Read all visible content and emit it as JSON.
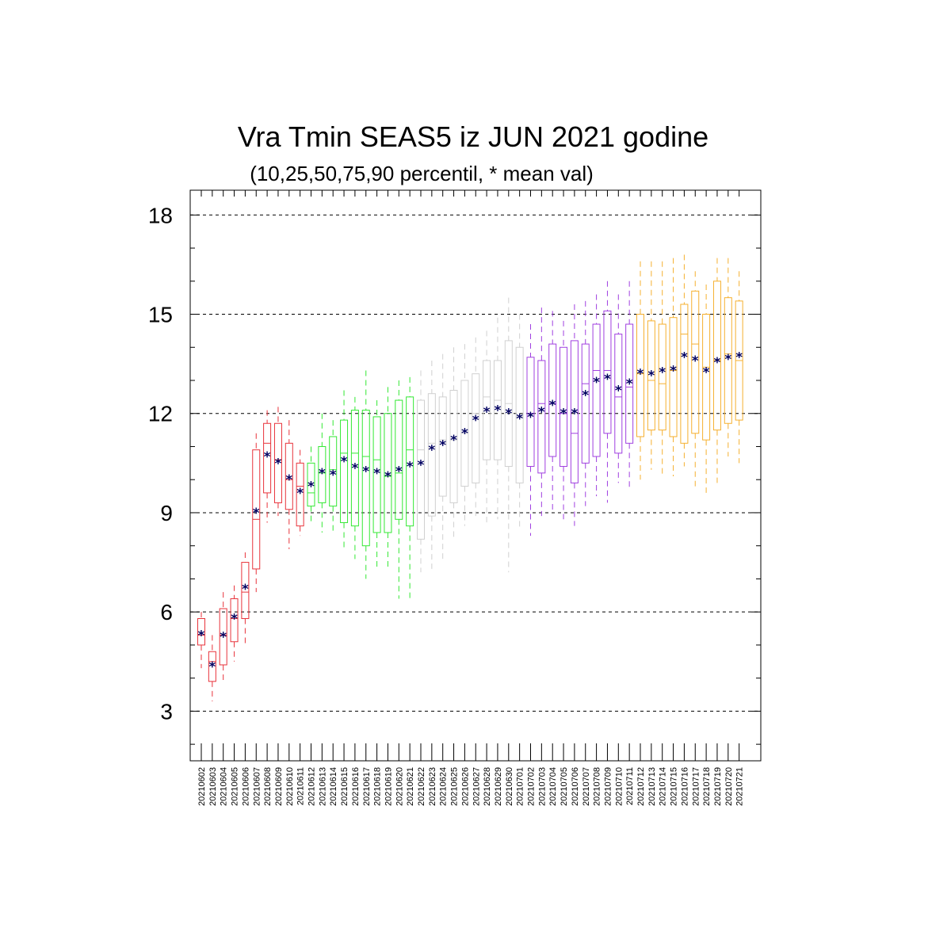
{
  "chart_data": {
    "type": "boxplot",
    "title": "Vra Tmin SEAS5 iz JUN 2021 godine",
    "subtitle": "(10,25,50,75,90 percentil, * mean val)",
    "ylim": [
      1.5,
      18.75
    ],
    "yticks": [
      "3",
      "6",
      "9",
      "12",
      "15",
      "18"
    ],
    "ytick_values": [
      3,
      6,
      9,
      12,
      15,
      18
    ],
    "grid": "horizontal dashed",
    "mean_marker": "*",
    "mean_color": "#000060",
    "colors": {
      "red": "#e8333b",
      "green": "#33e833",
      "gray": "#d0d0d0",
      "purple": "#a040e0",
      "orange": "#f5b030"
    },
    "categories": [
      "20210602",
      "20210603",
      "20210604",
      "20210605",
      "20210606",
      "20210607",
      "20210608",
      "20210609",
      "20210610",
      "20210611",
      "20210612",
      "20210613",
      "20210614",
      "20210615",
      "20210616",
      "20210617",
      "20210618",
      "20210619",
      "20210620",
      "20210621",
      "20210622",
      "20210623",
      "20210624",
      "20210625",
      "20210626",
      "20210627",
      "20210628",
      "20210629",
      "20210630",
      "20210701",
      "20210702",
      "20210703",
      "20210704",
      "20210705",
      "20210706",
      "20210707",
      "20210708",
      "20210709",
      "20210710",
      "20210711",
      "20210712",
      "20210713",
      "20210714",
      "20210715",
      "20210716",
      "20210717",
      "20210718",
      "20210719",
      "20210720",
      "20210721"
    ],
    "boxes": [
      {
        "p10": 4.3,
        "p25": 5.0,
        "p50": 5.3,
        "p75": 5.8,
        "p90": 6.0,
        "mean": 5.35,
        "color": "red"
      },
      {
        "p10": 3.3,
        "p25": 3.9,
        "p50": 4.5,
        "p75": 4.8,
        "p90": 5.3,
        "mean": 4.4,
        "color": "red"
      },
      {
        "p10": 3.9,
        "p25": 4.4,
        "p50": 5.3,
        "p75": 6.1,
        "p90": 6.6,
        "mean": 5.3,
        "color": "red"
      },
      {
        "p10": 4.5,
        "p25": 5.1,
        "p50": 5.8,
        "p75": 6.4,
        "p90": 6.8,
        "mean": 5.85,
        "color": "red"
      },
      {
        "p10": 5.0,
        "p25": 5.8,
        "p50": 6.6,
        "p75": 7.5,
        "p90": 7.8,
        "mean": 6.75,
        "color": "red"
      },
      {
        "p10": 6.6,
        "p25": 7.3,
        "p50": 8.8,
        "p75": 10.9,
        "p90": 11.4,
        "mean": 9.05,
        "color": "red"
      },
      {
        "p10": 8.7,
        "p25": 9.6,
        "p50": 11.1,
        "p75": 11.7,
        "p90": 12.1,
        "mean": 10.75,
        "color": "red"
      },
      {
        "p10": 8.9,
        "p25": 9.3,
        "p50": 10.6,
        "p75": 11.7,
        "p90": 12.2,
        "mean": 10.55,
        "color": "red"
      },
      {
        "p10": 7.9,
        "p25": 9.1,
        "p50": 10.0,
        "p75": 11.1,
        "p90": 11.8,
        "mean": 10.05,
        "color": "red"
      },
      {
        "p10": 8.3,
        "p25": 8.6,
        "p50": 9.8,
        "p75": 10.5,
        "p90": 10.9,
        "mean": 9.65,
        "color": "red"
      },
      {
        "p10": 8.7,
        "p25": 9.2,
        "p50": 9.6,
        "p75": 10.5,
        "p90": 11.0,
        "mean": 9.85,
        "color": "green"
      },
      {
        "p10": 8.4,
        "p25": 9.3,
        "p50": 10.2,
        "p75": 11.0,
        "p90": 12.0,
        "mean": 10.25,
        "color": "green"
      },
      {
        "p10": 8.4,
        "p25": 9.2,
        "p50": 10.3,
        "p75": 11.3,
        "p90": 11.8,
        "mean": 10.2,
        "color": "green"
      },
      {
        "p10": 7.9,
        "p25": 8.7,
        "p50": 10.8,
        "p75": 11.8,
        "p90": 12.7,
        "mean": 10.6,
        "color": "green"
      },
      {
        "p10": 7.6,
        "p25": 8.6,
        "p50": 10.8,
        "p75": 12.1,
        "p90": 12.5,
        "mean": 10.4,
        "color": "green"
      },
      {
        "p10": 7.0,
        "p25": 8.0,
        "p50": 10.7,
        "p75": 12.1,
        "p90": 13.3,
        "mean": 10.3,
        "color": "green"
      },
      {
        "p10": 7.3,
        "p25": 8.4,
        "p50": 10.6,
        "p75": 11.9,
        "p90": 12.4,
        "mean": 10.25,
        "color": "green"
      },
      {
        "p10": 7.3,
        "p25": 8.4,
        "p50": 10.1,
        "p75": 12.0,
        "p90": 12.8,
        "mean": 10.15,
        "color": "green"
      },
      {
        "p10": 6.4,
        "p25": 8.8,
        "p50": 10.2,
        "p75": 12.4,
        "p90": 13.0,
        "mean": 10.3,
        "color": "green"
      },
      {
        "p10": 6.4,
        "p25": 8.6,
        "p50": 10.9,
        "p75": 12.5,
        "p90": 13.1,
        "mean": 10.45,
        "color": "green"
      },
      {
        "p10": 7.2,
        "p25": 8.2,
        "p50": 10.9,
        "p75": 12.4,
        "p90": 13.3,
        "mean": 10.5,
        "color": "gray"
      },
      {
        "p10": 7.3,
        "p25": 8.9,
        "p50": 11.1,
        "p75": 12.6,
        "p90": 13.6,
        "mean": 10.95,
        "color": "gray"
      },
      {
        "p10": 7.6,
        "p25": 9.5,
        "p50": 11.2,
        "p75": 12.5,
        "p90": 13.8,
        "mean": 11.1,
        "color": "gray"
      },
      {
        "p10": 8.2,
        "p25": 9.3,
        "p50": 11.2,
        "p75": 12.7,
        "p90": 14.0,
        "mean": 11.25,
        "color": "gray"
      },
      {
        "p10": 8.6,
        "p25": 9.8,
        "p50": 11.4,
        "p75": 13.0,
        "p90": 14.1,
        "mean": 11.45,
        "color": "gray"
      },
      {
        "p10": 8.9,
        "p25": 9.9,
        "p50": 12.0,
        "p75": 13.2,
        "p90": 14.3,
        "mean": 11.85,
        "color": "gray"
      },
      {
        "p10": 8.6,
        "p25": 10.6,
        "p50": 12.5,
        "p75": 13.6,
        "p90": 14.5,
        "mean": 12.1,
        "color": "gray"
      },
      {
        "p10": 8.8,
        "p25": 10.6,
        "p50": 12.4,
        "p75": 13.6,
        "p90": 14.9,
        "mean": 12.15,
        "color": "gray"
      },
      {
        "p10": 7.2,
        "p25": 10.4,
        "p50": 12.3,
        "p75": 14.2,
        "p90": 15.5,
        "mean": 12.05,
        "color": "gray"
      },
      {
        "p10": 8.5,
        "p25": 9.9,
        "p50": 11.9,
        "p75": 14.0,
        "p90": 15.0,
        "mean": 11.9,
        "color": "gray"
      },
      {
        "p10": 8.3,
        "p25": 10.4,
        "p50": 12.0,
        "p75": 13.7,
        "p90": 14.7,
        "mean": 11.95,
        "color": "purple"
      },
      {
        "p10": 8.9,
        "p25": 10.2,
        "p50": 12.3,
        "p75": 13.6,
        "p90": 15.2,
        "mean": 12.1,
        "color": "purple"
      },
      {
        "p10": 9.0,
        "p25": 10.7,
        "p50": 12.3,
        "p75": 14.1,
        "p90": 15.1,
        "mean": 12.3,
        "color": "purple"
      },
      {
        "p10": 8.8,
        "p25": 10.4,
        "p50": 12.0,
        "p75": 14.0,
        "p90": 14.8,
        "mean": 12.05,
        "color": "purple"
      },
      {
        "p10": 8.6,
        "p25": 9.9,
        "p50": 11.4,
        "p75": 14.2,
        "p90": 15.3,
        "mean": 12.05,
        "color": "purple"
      },
      {
        "p10": 9.2,
        "p25": 10.5,
        "p50": 12.9,
        "p75": 14.1,
        "p90": 15.4,
        "mean": 12.6,
        "color": "purple"
      },
      {
        "p10": 9.5,
        "p25": 10.7,
        "p50": 13.3,
        "p75": 14.7,
        "p90": 15.6,
        "mean": 13.0,
        "color": "purple"
      },
      {
        "p10": 9.3,
        "p25": 11.4,
        "p50": 13.3,
        "p75": 15.1,
        "p90": 16.0,
        "mean": 13.1,
        "color": "purple"
      },
      {
        "p10": 9.9,
        "p25": 10.8,
        "p50": 12.5,
        "p75": 14.4,
        "p90": 15.6,
        "mean": 12.75,
        "color": "purple"
      },
      {
        "p10": 9.7,
        "p25": 11.1,
        "p50": 12.8,
        "p75": 14.7,
        "p90": 16.0,
        "mean": 12.95,
        "color": "purple"
      },
      {
        "p10": 10.0,
        "p25": 11.3,
        "p50": 13.2,
        "p75": 15.0,
        "p90": 16.6,
        "mean": 13.25,
        "color": "orange"
      },
      {
        "p10": 10.3,
        "p25": 11.5,
        "p50": 13.0,
        "p75": 14.8,
        "p90": 16.6,
        "mean": 13.2,
        "color": "orange"
      },
      {
        "p10": 10.1,
        "p25": 11.5,
        "p50": 12.9,
        "p75": 14.7,
        "p90": 16.6,
        "mean": 13.3,
        "color": "orange"
      },
      {
        "p10": 10.1,
        "p25": 11.3,
        "p50": 13.3,
        "p75": 14.9,
        "p90": 16.7,
        "mean": 13.35,
        "color": "orange"
      },
      {
        "p10": 10.4,
        "p25": 11.1,
        "p50": 14.4,
        "p75": 15.3,
        "p90": 16.8,
        "mean": 13.75,
        "color": "orange"
      },
      {
        "p10": 9.8,
        "p25": 11.4,
        "p50": 14.1,
        "p75": 15.7,
        "p90": 16.3,
        "mean": 13.65,
        "color": "orange"
      },
      {
        "p10": 9.6,
        "p25": 11.2,
        "p50": 13.4,
        "p75": 15.0,
        "p90": 15.9,
        "mean": 13.3,
        "color": "orange"
      },
      {
        "p10": 9.9,
        "p25": 11.5,
        "p50": 13.6,
        "p75": 16.0,
        "p90": 16.7,
        "mean": 13.6,
        "color": "orange"
      },
      {
        "p10": 10.7,
        "p25": 11.7,
        "p50": 13.8,
        "p75": 15.5,
        "p90": 16.7,
        "mean": 13.7,
        "color": "orange"
      },
      {
        "p10": 10.5,
        "p25": 11.8,
        "p50": 13.6,
        "p75": 15.4,
        "p90": 16.3,
        "mean": 13.75,
        "color": "orange"
      }
    ]
  }
}
